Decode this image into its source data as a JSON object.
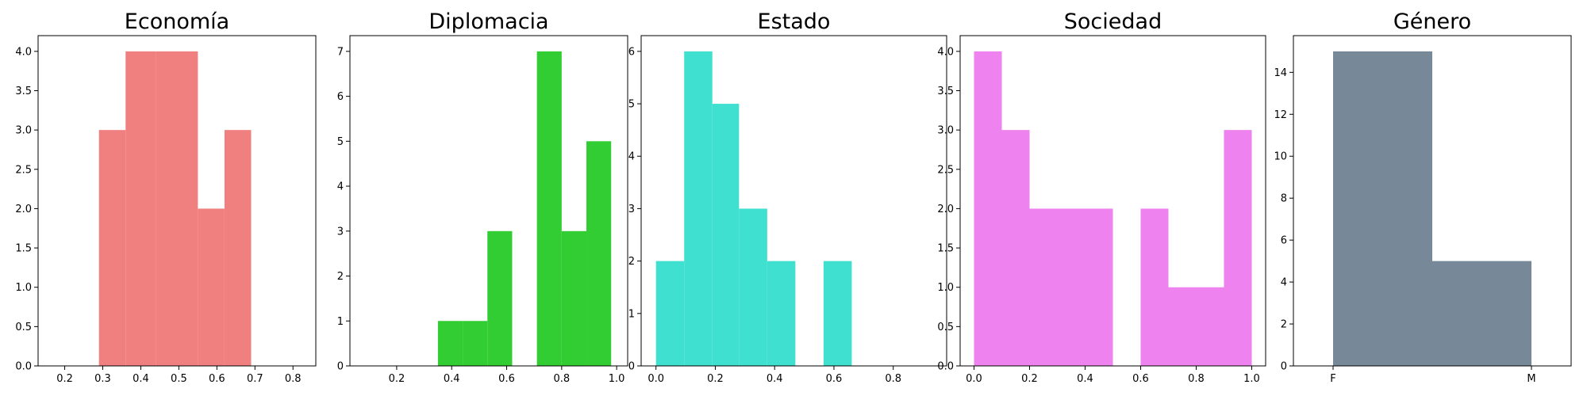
{
  "chart_data": [
    {
      "type": "bar",
      "title": "Economía",
      "color": "#f08080",
      "xlim": [
        0.13,
        0.86
      ],
      "ylim": [
        0,
        4.2
      ],
      "xticks": [
        0.2,
        0.3,
        0.4,
        0.5,
        0.6,
        0.7,
        0.8
      ],
      "yticks": [
        0.0,
        0.5,
        1.0,
        1.5,
        2.0,
        2.5,
        3.0,
        3.5,
        4.0
      ],
      "yticks_decimals": 1,
      "xticks_decimals": 1,
      "bins": [
        {
          "x0": 0.29,
          "x1": 0.36,
          "count": 3
        },
        {
          "x0": 0.36,
          "x1": 0.44,
          "count": 4
        },
        {
          "x0": 0.44,
          "x1": 0.55,
          "count": 4
        },
        {
          "x0": 0.55,
          "x1": 0.62,
          "count": 2
        },
        {
          "x0": 0.62,
          "x1": 0.69,
          "count": 3
        }
      ]
    },
    {
      "type": "bar",
      "title": "Diplomacia",
      "color": "#32cd32",
      "xlim": [
        0.03,
        1.04
      ],
      "ylim": [
        0,
        7.35
      ],
      "xticks": [
        0.2,
        0.4,
        0.6,
        0.8,
        1.0
      ],
      "yticks": [
        0,
        1,
        2,
        3,
        4,
        5,
        6,
        7
      ],
      "yticks_decimals": 0,
      "xticks_decimals": 1,
      "bins": [
        {
          "x0": 0.35,
          "x1": 0.44,
          "count": 1
        },
        {
          "x0": 0.44,
          "x1": 0.53,
          "count": 1
        },
        {
          "x0": 0.53,
          "x1": 0.62,
          "count": 3
        },
        {
          "x0": 0.71,
          "x1": 0.8,
          "count": 7
        },
        {
          "x0": 0.8,
          "x1": 0.89,
          "count": 3
        },
        {
          "x0": 0.89,
          "x1": 0.98,
          "count": 5
        }
      ]
    },
    {
      "type": "bar",
      "title": "Estado",
      "color": "#40e0d0",
      "xlim": [
        -0.05,
        0.98
      ],
      "ylim": [
        0,
        6.3
      ],
      "xticks": [
        0.0,
        0.2,
        0.4,
        0.6,
        0.8
      ],
      "yticks": [
        0,
        1,
        2,
        3,
        4,
        5,
        6
      ],
      "yticks_decimals": 0,
      "xticks_decimals": 1,
      "bins": [
        {
          "x0": 0.0,
          "x1": 0.095,
          "count": 2
        },
        {
          "x0": 0.095,
          "x1": 0.19,
          "count": 6
        },
        {
          "x0": 0.19,
          "x1": 0.28,
          "count": 5
        },
        {
          "x0": 0.28,
          "x1": 0.375,
          "count": 3
        },
        {
          "x0": 0.375,
          "x1": 0.47,
          "count": 2
        },
        {
          "x0": 0.565,
          "x1": 0.66,
          "count": 2
        }
      ]
    },
    {
      "type": "bar",
      "title": "Sociedad",
      "color": "#ee82ee",
      "xlim": [
        -0.05,
        1.05
      ],
      "ylim": [
        0,
        4.2
      ],
      "xticks": [
        0.0,
        0.2,
        0.4,
        0.6,
        0.8,
        1.0
      ],
      "yticks": [
        0.0,
        0.5,
        1.0,
        1.5,
        2.0,
        2.5,
        3.0,
        3.5,
        4.0
      ],
      "yticks_decimals": 1,
      "xticks_decimals": 1,
      "bins": [
        {
          "x0": 0.0,
          "x1": 0.1,
          "count": 4
        },
        {
          "x0": 0.1,
          "x1": 0.2,
          "count": 3
        },
        {
          "x0": 0.2,
          "x1": 0.3,
          "count": 2
        },
        {
          "x0": 0.3,
          "x1": 0.4,
          "count": 2
        },
        {
          "x0": 0.4,
          "x1": 0.5,
          "count": 2
        },
        {
          "x0": 0.6,
          "x1": 0.7,
          "count": 2
        },
        {
          "x0": 0.7,
          "x1": 0.8,
          "count": 1
        },
        {
          "x0": 0.8,
          "x1": 0.9,
          "count": 1
        },
        {
          "x0": 0.9,
          "x1": 1.0,
          "count": 3
        }
      ]
    },
    {
      "type": "bar",
      "title": "Género",
      "color": "#778899",
      "xlim": [
        -0.2,
        1.2
      ],
      "ylim": [
        0,
        15.75
      ],
      "xticks": [
        0,
        1
      ],
      "xtick_labels": [
        "F",
        "M"
      ],
      "yticks": [
        0,
        2,
        4,
        6,
        8,
        10,
        12,
        14
      ],
      "yticks_decimals": 0,
      "bins": [
        {
          "x0": -0.0,
          "x1": 0.5,
          "count": 15
        },
        {
          "x0": 0.5,
          "x1": 1.0,
          "count": 5
        }
      ]
    }
  ]
}
